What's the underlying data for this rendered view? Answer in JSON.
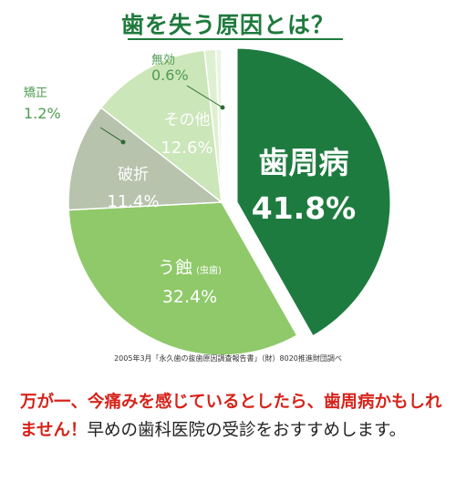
{
  "title": "歯を失う原因とは？",
  "source": "2005年3月「永久歯の抜歯原因調査報告書」（財）8020推進財団調べ",
  "message": {
    "highlight": "万が一、今痛みを感じているとしたら、歯周病かもしれません！",
    "rest": "早めの歯科医院の受診をおすすめします。"
  },
  "chart_data": {
    "type": "pie",
    "title": "歯を失う原因とは？",
    "slices": [
      {
        "label": "歯周病",
        "note": "",
        "value": 41.8,
        "value_label": "41.8%",
        "color": "#1e7b3f"
      },
      {
        "label": "う蝕",
        "note": "(虫歯)",
        "value": 32.4,
        "value_label": "32.4%",
        "color": "#8fc96a"
      },
      {
        "label": "破折",
        "note": "",
        "value": 11.4,
        "value_label": "11.4%",
        "color": "#b7c3ad"
      },
      {
        "label": "その他",
        "note": "",
        "value": 12.6,
        "value_label": "12.6%",
        "color": "#cbe6b8"
      },
      {
        "label": "矯正",
        "note": "",
        "value": 1.2,
        "value_label": "1.2%",
        "color": "#dff0d2"
      },
      {
        "label": "無効",
        "note": "",
        "value": 0.6,
        "value_label": "0.6%",
        "color": "#e8f5df"
      }
    ],
    "start_angle_deg": 0,
    "direction": "clockwise",
    "legend": "none"
  }
}
